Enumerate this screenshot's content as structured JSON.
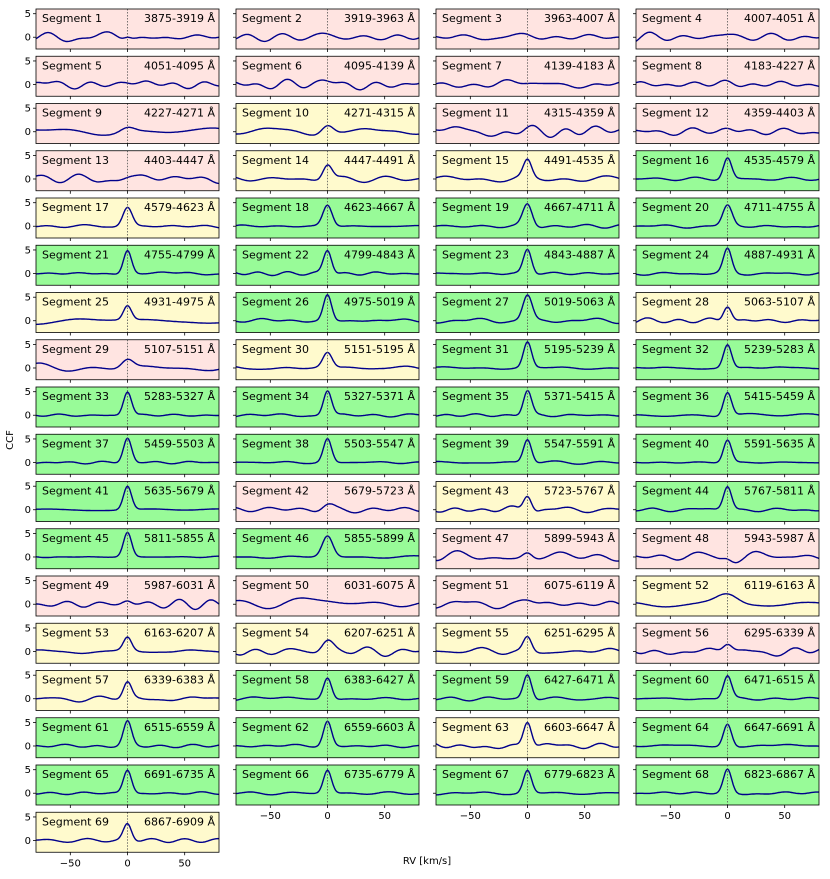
{
  "figure": {
    "ylabel": "CCF",
    "xlabel": "RV [km/s]",
    "xlim": [
      -80,
      80
    ],
    "ylim": [
      -2.5,
      6
    ],
    "xticks": [
      -50,
      0,
      50
    ],
    "yticks": [
      0,
      5
    ],
    "line_color": "#00008b",
    "vline": 0,
    "status_colors": {
      "good": "#98fb98",
      "medium": "#fffacd",
      "bad": "#ffe4e1"
    }
  },
  "chart_data": {
    "type": "line",
    "xlabel": "RV [km/s]",
    "ylabel": "CCF",
    "note_status": "panel background color: good=green, medium=yellow, bad=pink",
    "segments": [
      {
        "label": "Segment 1",
        "range": "3875-3919 Å",
        "status": "bad",
        "peak": 0.6,
        "noise": 1.1,
        "width": 3
      },
      {
        "label": "Segment 2",
        "range": "3919-3963 Å",
        "status": "bad",
        "peak": 0.3,
        "noise": 0.6,
        "width": 8
      },
      {
        "label": "Segment 3",
        "range": "3963-4007 Å",
        "status": "bad",
        "peak": 0.3,
        "noise": 0.7,
        "width": 8
      },
      {
        "label": "Segment 4",
        "range": "4007-4051 Å",
        "status": "bad",
        "peak": 0.5,
        "noise": 0.8,
        "width": 8
      },
      {
        "label": "Segment 5",
        "range": "4051-4095 Å",
        "status": "bad",
        "peak": 0.6,
        "noise": 0.9,
        "width": 6
      },
      {
        "label": "Segment 6",
        "range": "4095-4139 Å",
        "status": "bad",
        "peak": 0.7,
        "noise": 1.0,
        "width": 6
      },
      {
        "label": "Segment 7",
        "range": "4139-4183 Å",
        "status": "bad",
        "peak": 0.6,
        "noise": 1.0,
        "width": 6
      },
      {
        "label": "Segment 8",
        "range": "4183-4227 Å",
        "status": "bad",
        "peak": 0.5,
        "noise": 1.0,
        "width": 6
      },
      {
        "label": "Segment 9",
        "range": "4227-4271 Å",
        "status": "bad",
        "peak": 1.0,
        "noise": 1.0,
        "width": 6
      },
      {
        "label": "Segment 10",
        "range": "4271-4315 Å",
        "status": "medium",
        "peak": 1.8,
        "noise": 0.8,
        "width": 5
      },
      {
        "label": "Segment 11",
        "range": "4315-4359 Å",
        "status": "bad",
        "peak": 0.8,
        "noise": 1.0,
        "width": 6
      },
      {
        "label": "Segment 12",
        "range": "4359-4403 Å",
        "status": "bad",
        "peak": 0.8,
        "noise": 0.8,
        "width": 6
      },
      {
        "label": "Segment 13",
        "range": "4403-4447 Å",
        "status": "bad",
        "peak": 0.9,
        "noise": 0.9,
        "width": 6
      },
      {
        "label": "Segment 14",
        "range": "4447-4491 Å",
        "status": "medium",
        "peak": 3.2,
        "noise": 0.7,
        "width": 4
      },
      {
        "label": "Segment 15",
        "range": "4491-4535 Å",
        "status": "medium",
        "peak": 3.5,
        "noise": 0.6,
        "width": 3.5
      },
      {
        "label": "Segment 16",
        "range": "4535-4579 Å",
        "status": "good",
        "peak": 4.5,
        "noise": 0.35,
        "width": 3.5
      },
      {
        "label": "Segment 17",
        "range": "4579-4623 Å",
        "status": "medium",
        "peak": 4.0,
        "noise": 0.4,
        "width": 4
      },
      {
        "label": "Segment 18",
        "range": "4623-4667 Å",
        "status": "good",
        "peak": 4.5,
        "noise": 0.35,
        "width": 4
      },
      {
        "label": "Segment 19",
        "range": "4667-4711 Å",
        "status": "good",
        "peak": 4.6,
        "noise": 0.35,
        "width": 4
      },
      {
        "label": "Segment 20",
        "range": "4711-4755 Å",
        "status": "good",
        "peak": 4.3,
        "noise": 0.4,
        "width": 4
      },
      {
        "label": "Segment 21",
        "range": "4755-4799 Å",
        "status": "good",
        "peak": 5.0,
        "noise": 0.35,
        "width": 3.5
      },
      {
        "label": "Segment 22",
        "range": "4799-4843 Å",
        "status": "good",
        "peak": 5.0,
        "noise": 0.35,
        "width": 3.5
      },
      {
        "label": "Segment 23",
        "range": "4843-4887 Å",
        "status": "good",
        "peak": 5.1,
        "noise": 0.3,
        "width": 3.5
      },
      {
        "label": "Segment 24",
        "range": "4887-4931 Å",
        "status": "good",
        "peak": 5.0,
        "noise": 0.3,
        "width": 3.5
      },
      {
        "label": "Segment 25",
        "range": "4931-4975 Å",
        "status": "medium",
        "peak": 3.0,
        "noise": 0.8,
        "width": 3.5
      },
      {
        "label": "Segment 26",
        "range": "4975-5019 Å",
        "status": "good",
        "peak": 5.5,
        "noise": 0.35,
        "width": 3.5
      },
      {
        "label": "Segment 27",
        "range": "5019-5063 Å",
        "status": "good",
        "peak": 5.4,
        "noise": 0.4,
        "width": 4
      },
      {
        "label": "Segment 28",
        "range": "5063-5107 Å",
        "status": "medium",
        "peak": 3.4,
        "noise": 0.7,
        "width": 3.5
      },
      {
        "label": "Segment 29",
        "range": "5107-5151 Å",
        "status": "bad",
        "peak": 1.8,
        "noise": 0.8,
        "width": 5
      },
      {
        "label": "Segment 30",
        "range": "5151-5195 Å",
        "status": "medium",
        "peak": 3.2,
        "noise": 0.5,
        "width": 4
      },
      {
        "label": "Segment 31",
        "range": "5195-5239 Å",
        "status": "good",
        "peak": 5.4,
        "noise": 0.3,
        "width": 3.5
      },
      {
        "label": "Segment 32",
        "range": "5239-5283 Å",
        "status": "good",
        "peak": 5.0,
        "noise": 0.35,
        "width": 3.5
      },
      {
        "label": "Segment 33",
        "range": "5283-5327 Å",
        "status": "good",
        "peak": 5.0,
        "noise": 0.3,
        "width": 3.5
      },
      {
        "label": "Segment 34",
        "range": "5327-5371 Å",
        "status": "good",
        "peak": 5.2,
        "noise": 0.3,
        "width": 3.5
      },
      {
        "label": "Segment 35",
        "range": "5371-5415 Å",
        "status": "good",
        "peak": 5.2,
        "noise": 0.3,
        "width": 3.5
      },
      {
        "label": "Segment 36",
        "range": "5415-5459 Å",
        "status": "good",
        "peak": 5.0,
        "noise": 0.3,
        "width": 3.5
      },
      {
        "label": "Segment 37",
        "range": "5459-5503 Å",
        "status": "good",
        "peak": 5.2,
        "noise": 0.3,
        "width": 3.5
      },
      {
        "label": "Segment 38",
        "range": "5503-5547 Å",
        "status": "good",
        "peak": 5.0,
        "noise": 0.3,
        "width": 3.5
      },
      {
        "label": "Segment 39",
        "range": "5547-5591 Å",
        "status": "good",
        "peak": 5.0,
        "noise": 0.3,
        "width": 3.5
      },
      {
        "label": "Segment 40",
        "range": "5591-5635 Å",
        "status": "good",
        "peak": 4.8,
        "noise": 0.35,
        "width": 3.5
      },
      {
        "label": "Segment 41",
        "range": "5635-5679 Å",
        "status": "good",
        "peak": 5.0,
        "noise": 0.3,
        "width": 3.5
      },
      {
        "label": "Segment 42",
        "range": "5679-5723 Å",
        "status": "bad",
        "peak": 1.2,
        "noise": 0.8,
        "width": 5
      },
      {
        "label": "Segment 43",
        "range": "5723-5767 Å",
        "status": "medium",
        "peak": 3.5,
        "noise": 0.6,
        "width": 3.5
      },
      {
        "label": "Segment 44",
        "range": "5767-5811 Å",
        "status": "good",
        "peak": 5.0,
        "noise": 0.35,
        "width": 3.5
      },
      {
        "label": "Segment 45",
        "range": "5811-5855 Å",
        "status": "good",
        "peak": 5.2,
        "noise": 0.35,
        "width": 3.5
      },
      {
        "label": "Segment 46",
        "range": "5855-5899 Å",
        "status": "good",
        "peak": 4.4,
        "noise": 0.4,
        "width": 4.5
      },
      {
        "label": "Segment 47",
        "range": "5899-5943 Å",
        "status": "bad",
        "peak": 1.2,
        "noise": 1.2,
        "width": 4
      },
      {
        "label": "Segment 48",
        "range": "5943-5987 Å",
        "status": "bad",
        "peak": 0.8,
        "noise": 1.3,
        "width": 4
      },
      {
        "label": "Segment 49",
        "range": "5987-6031 Å",
        "status": "bad",
        "peak": 0.8,
        "noise": 1.2,
        "width": 4
      },
      {
        "label": "Segment 50",
        "range": "6031-6075 Å",
        "status": "bad",
        "peak": 1.4,
        "noise": 1.0,
        "width": 12
      },
      {
        "label": "Segment 51",
        "range": "6075-6119 Å",
        "status": "bad",
        "peak": 1.0,
        "noise": 1.1,
        "width": 6
      },
      {
        "label": "Segment 52",
        "range": "6119-6163 Å",
        "status": "medium",
        "peak": 2.0,
        "noise": 0.5,
        "width": 9
      },
      {
        "label": "Segment 53",
        "range": "6163-6207 Å",
        "status": "medium",
        "peak": 2.8,
        "noise": 0.6,
        "width": 3.5
      },
      {
        "label": "Segment 54",
        "range": "6207-6251 Å",
        "status": "medium",
        "peak": 2.5,
        "noise": 0.8,
        "width": 5
      },
      {
        "label": "Segment 55",
        "range": "6251-6295 Å",
        "status": "medium",
        "peak": 3.0,
        "noise": 0.8,
        "width": 3.5
      },
      {
        "label": "Segment 56",
        "range": "6295-6339 Å",
        "status": "bad",
        "peak": 1.8,
        "noise": 0.9,
        "width": 4
      },
      {
        "label": "Segment 57",
        "range": "6339-6383 Å",
        "status": "medium",
        "peak": 3.4,
        "noise": 0.6,
        "width": 3.5
      },
      {
        "label": "Segment 58",
        "range": "6383-6427 Å",
        "status": "good",
        "peak": 4.6,
        "noise": 0.35,
        "width": 3.5
      },
      {
        "label": "Segment 59",
        "range": "6427-6471 Å",
        "status": "good",
        "peak": 5.2,
        "noise": 0.35,
        "width": 3.5
      },
      {
        "label": "Segment 60",
        "range": "6471-6515 Å",
        "status": "good",
        "peak": 4.8,
        "noise": 0.35,
        "width": 3.5
      },
      {
        "label": "Segment 61",
        "range": "6515-6559 Å",
        "status": "good",
        "peak": 5.0,
        "noise": 0.3,
        "width": 3.5
      },
      {
        "label": "Segment 62",
        "range": "6559-6603 Å",
        "status": "good",
        "peak": 5.2,
        "noise": 0.3,
        "width": 3.5
      },
      {
        "label": "Segment 63",
        "range": "6603-6647 Å",
        "status": "medium",
        "peak": 5.5,
        "noise": 0.8,
        "width": 3.5
      },
      {
        "label": "Segment 64",
        "range": "6647-6691 Å",
        "status": "good",
        "peak": 4.8,
        "noise": 0.3,
        "width": 3.5
      },
      {
        "label": "Segment 65",
        "range": "6691-6735 Å",
        "status": "good",
        "peak": 4.9,
        "noise": 0.3,
        "width": 3.5
      },
      {
        "label": "Segment 66",
        "range": "6735-6779 Å",
        "status": "good",
        "peak": 4.9,
        "noise": 0.3,
        "width": 3.5
      },
      {
        "label": "Segment 67",
        "range": "6779-6823 Å",
        "status": "good",
        "peak": 4.8,
        "noise": 0.35,
        "width": 3.5
      },
      {
        "label": "Segment 68",
        "range": "6823-6867 Å",
        "status": "good",
        "peak": 5.0,
        "noise": 0.35,
        "width": 3.5
      },
      {
        "label": "Segment 69",
        "range": "6867-6909 Å",
        "status": "medium",
        "peak": 3.6,
        "noise": 0.6,
        "width": 3.5
      }
    ]
  }
}
